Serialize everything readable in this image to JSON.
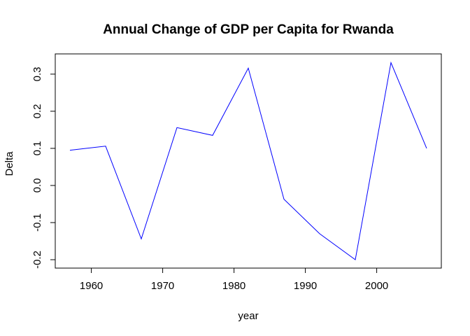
{
  "chart_data": {
    "type": "line",
    "title": "Annual Change of GDP per Capita for Rwanda",
    "xlabel": "year",
    "ylabel": "Delta",
    "xlim": [
      1957,
      2007
    ],
    "ylim": [
      -0.2,
      0.33
    ],
    "x_ticks": [
      1960,
      1970,
      1980,
      1990,
      2000
    ],
    "y_ticks": [
      -0.2,
      -0.1,
      0.0,
      0.1,
      0.2,
      0.3
    ],
    "y_tick_labels": [
      "-0.2",
      "-0.1",
      "0.0",
      "0.1",
      "0.2",
      "0.3"
    ],
    "grid": false,
    "legend": "none",
    "series": [
      {
        "color": "#0000ff",
        "x": [
          1957,
          1962,
          1967,
          1972,
          1977,
          1982,
          1987,
          1992,
          1997,
          2002,
          2007
        ],
        "y": [
          0.095,
          0.106,
          -0.144,
          0.156,
          0.135,
          0.316,
          -0.037,
          -0.13,
          -0.2,
          0.331,
          0.1
        ]
      }
    ]
  }
}
